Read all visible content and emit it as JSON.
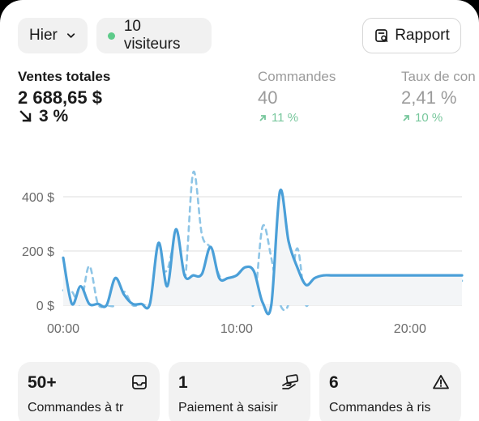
{
  "toolbar": {
    "period_label": "Hier",
    "visitors_label": "10 visiteurs",
    "report_label": "Rapport"
  },
  "metrics": [
    {
      "label": "Ventes totales",
      "value": "2 688,65 $",
      "change": "3 %",
      "direction": "down"
    },
    {
      "label": "Commandes",
      "value": "40",
      "change": "11 %",
      "direction": "up"
    },
    {
      "label": "Taux de con",
      "value": "2,41 %",
      "change": "10 %",
      "direction": "up"
    }
  ],
  "chart_data": {
    "type": "line",
    "title": "",
    "xlabel": "",
    "ylabel": "",
    "x_ticks": [
      "00:00",
      "10:00",
      "20:00"
    ],
    "y_ticks": [
      "0 $",
      "200 $",
      "400 $"
    ],
    "ylim": [
      0,
      400
    ],
    "xlim": [
      0,
      23
    ],
    "grid": true,
    "x": [
      0,
      0.5,
      1,
      1.5,
      2,
      2.5,
      3,
      3.5,
      4,
      4.5,
      5,
      5.5,
      6,
      6.5,
      7,
      7.5,
      8,
      8.5,
      9,
      9.5,
      10,
      10.5,
      11,
      11.5,
      12,
      12.5,
      13,
      13.5,
      14,
      14.5,
      15,
      15.5,
      16,
      16.5,
      17,
      17.5,
      18,
      18.5,
      19,
      19.5,
      20,
      20.5,
      21,
      21.5,
      22,
      22.5,
      23
    ],
    "series": [
      {
        "style": "solid",
        "color": "#4a9fd8",
        "values": [
          175,
          5,
          70,
          5,
          5,
          0,
          100,
          40,
          5,
          5,
          5,
          230,
          70,
          280,
          110,
          110,
          115,
          215,
          100,
          100,
          110,
          140,
          125,
          10,
          0,
          420,
          235,
          140,
          75,
          100,
          110,
          110,
          110,
          110,
          110,
          110,
          110,
          110,
          110,
          110,
          110,
          110,
          110,
          110,
          110,
          110,
          110
        ],
        "values_note": ""
      },
      {
        "style": "dashed",
        "color": "#8ec5e6",
        "values": [
          55,
          50,
          5,
          145,
          5,
          0,
          0,
          50,
          0,
          5,
          5,
          125,
          130,
          240,
          85,
          490,
          260,
          210,
          110,
          90,
          100,
          80,
          5,
          290,
          175,
          5,
          5,
          210,
          0,
          90,
          90,
          90,
          90,
          90,
          90,
          90,
          90,
          90,
          90,
          90,
          90,
          90,
          90,
          90,
          90,
          90,
          90
        ],
        "values_note": ""
      }
    ]
  },
  "cards": [
    {
      "value": "50+",
      "label": "Commandes à tr",
      "icon": "inbox-icon"
    },
    {
      "value": "1",
      "label": "Paiement à saisir",
      "icon": "hand-payment-icon"
    },
    {
      "value": "6",
      "label": "Commandes à ris",
      "icon": "warning-icon"
    }
  ]
}
